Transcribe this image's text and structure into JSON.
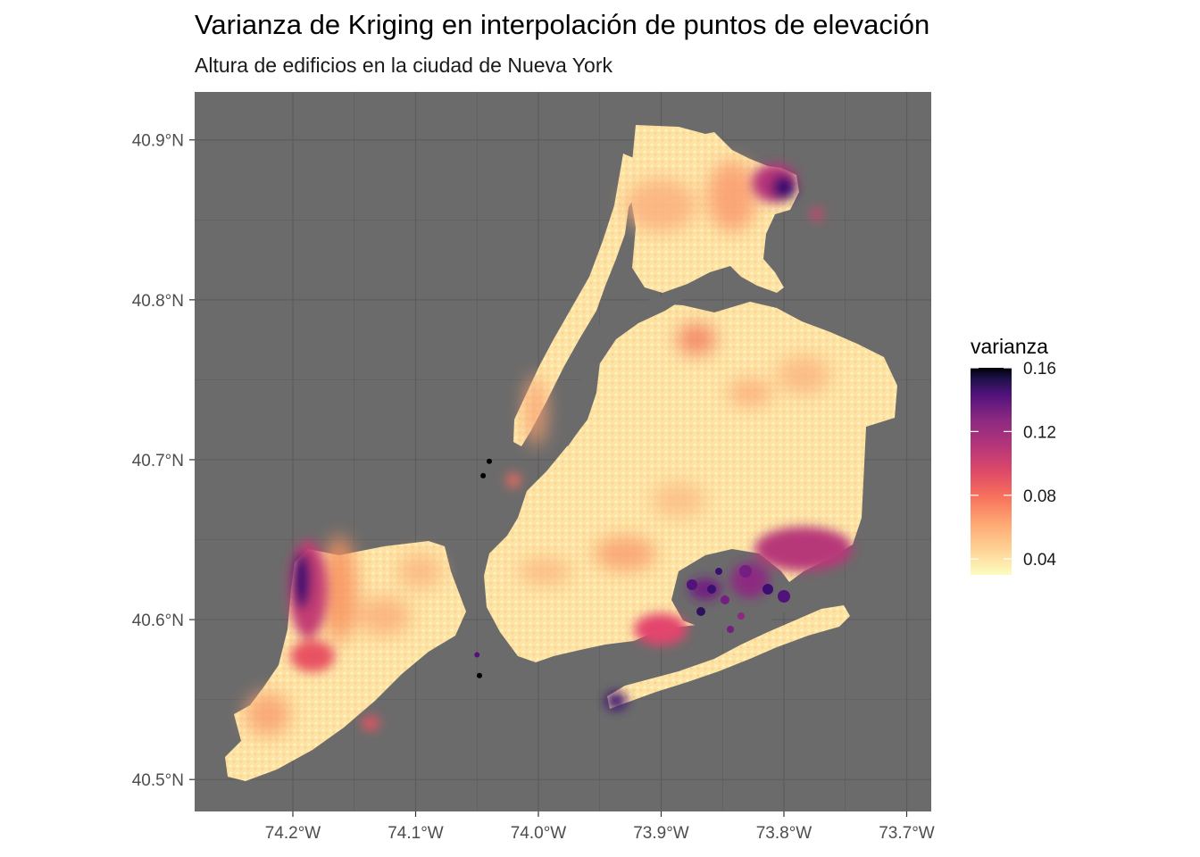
{
  "title": "Varianza de Kriging en interpolación de puntos de elevación",
  "subtitle": "Altura de edificios en la ciudad de Nueva York",
  "colors": {
    "panel": "#6b6b6b",
    "grid": "#5c5c5c",
    "low": "#fcfdbf",
    "mid": "#fd9567",
    "high": "#e3446d",
    "higher": "#721f81",
    "max": "#000004"
  },
  "chart_data": {
    "type": "heatmap",
    "title": "Varianza de Kriging en interpolación de puntos de elevación",
    "subtitle": "Altura de edificios en la ciudad de Nueva York",
    "xlabel": "",
    "ylabel": "",
    "x_ticks": [
      {
        "value": -74.2,
        "label": "74.2°W"
      },
      {
        "value": -74.1,
        "label": "74.1°W"
      },
      {
        "value": -74.0,
        "label": "74.0°W"
      },
      {
        "value": -73.9,
        "label": "73.9°W"
      },
      {
        "value": -73.8,
        "label": "73.8°W"
      },
      {
        "value": -73.7,
        "label": "73.7°W"
      }
    ],
    "y_ticks": [
      {
        "value": 40.9,
        "label": "40.9°N"
      },
      {
        "value": 40.8,
        "label": "40.8°N"
      },
      {
        "value": 40.7,
        "label": "40.7°N"
      },
      {
        "value": 40.6,
        "label": "40.6°N"
      },
      {
        "value": 40.5,
        "label": "40.5°N"
      }
    ],
    "xlim": [
      -74.28,
      -73.68
    ],
    "ylim": [
      40.48,
      40.93
    ],
    "grid": true,
    "legend": {
      "title": "varianza",
      "position": "right",
      "range": [
        0.03,
        0.16
      ],
      "ticks": [
        {
          "value": 0.16,
          "label": "0.16"
        },
        {
          "value": 0.12,
          "label": "0.12"
        },
        {
          "value": 0.08,
          "label": "0.08"
        },
        {
          "value": 0.04,
          "label": "0.04"
        }
      ]
    },
    "hotspots": [
      {
        "lon": -73.79,
        "lat": 40.872,
        "varianza": 0.15
      },
      {
        "lon": -74.195,
        "lat": 40.625,
        "varianza": 0.16
      },
      {
        "lon": -73.8,
        "lat": 40.64,
        "varianza": 0.13
      },
      {
        "lon": -73.84,
        "lat": 40.622,
        "varianza": 0.12
      },
      {
        "lon": -73.88,
        "lat": 40.59,
        "varianza": 0.09
      },
      {
        "lon": -73.935,
        "lat": 40.548,
        "varianza": 0.14
      }
    ],
    "isolated_points": [
      {
        "lon": -74.04,
        "lat": 40.699,
        "varianza": 0.16
      },
      {
        "lon": -74.045,
        "lat": 40.69,
        "varianza": 0.16
      },
      {
        "lon": -74.05,
        "lat": 40.578,
        "varianza": 0.13
      },
      {
        "lon": -74.048,
        "lat": 40.565,
        "varianza": 0.16
      }
    ]
  }
}
